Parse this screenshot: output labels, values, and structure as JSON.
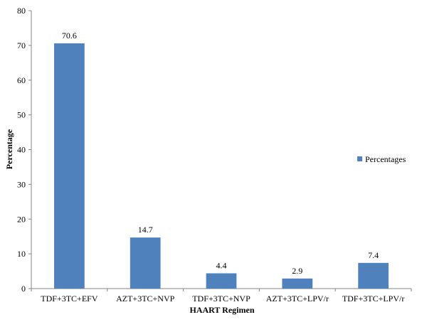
{
  "chart_data": {
    "type": "bar",
    "categories": [
      "TDF+3TC+EFV",
      "AZT+3TC+NVP",
      "TDF+3TC+NVP",
      "AZT+3TC+LPV/r",
      "TDF+3TC+LPV/r"
    ],
    "series": [
      {
        "name": "Percentages",
        "values": [
          70.6,
          14.7,
          4.4,
          2.9,
          7.4
        ],
        "color": "#4F81BD"
      }
    ],
    "data_labels": [
      "70.6",
      "14.7",
      "4.4",
      "2.9",
      "7.4"
    ],
    "xlabel": "HAART Regimen",
    "ylabel": "Percentage",
    "ylim": [
      0,
      80
    ],
    "yticks": [
      "0",
      "10",
      "20",
      "30",
      "40",
      "50",
      "60",
      "70",
      "80"
    ],
    "grid": false,
    "legend_position": "right"
  }
}
